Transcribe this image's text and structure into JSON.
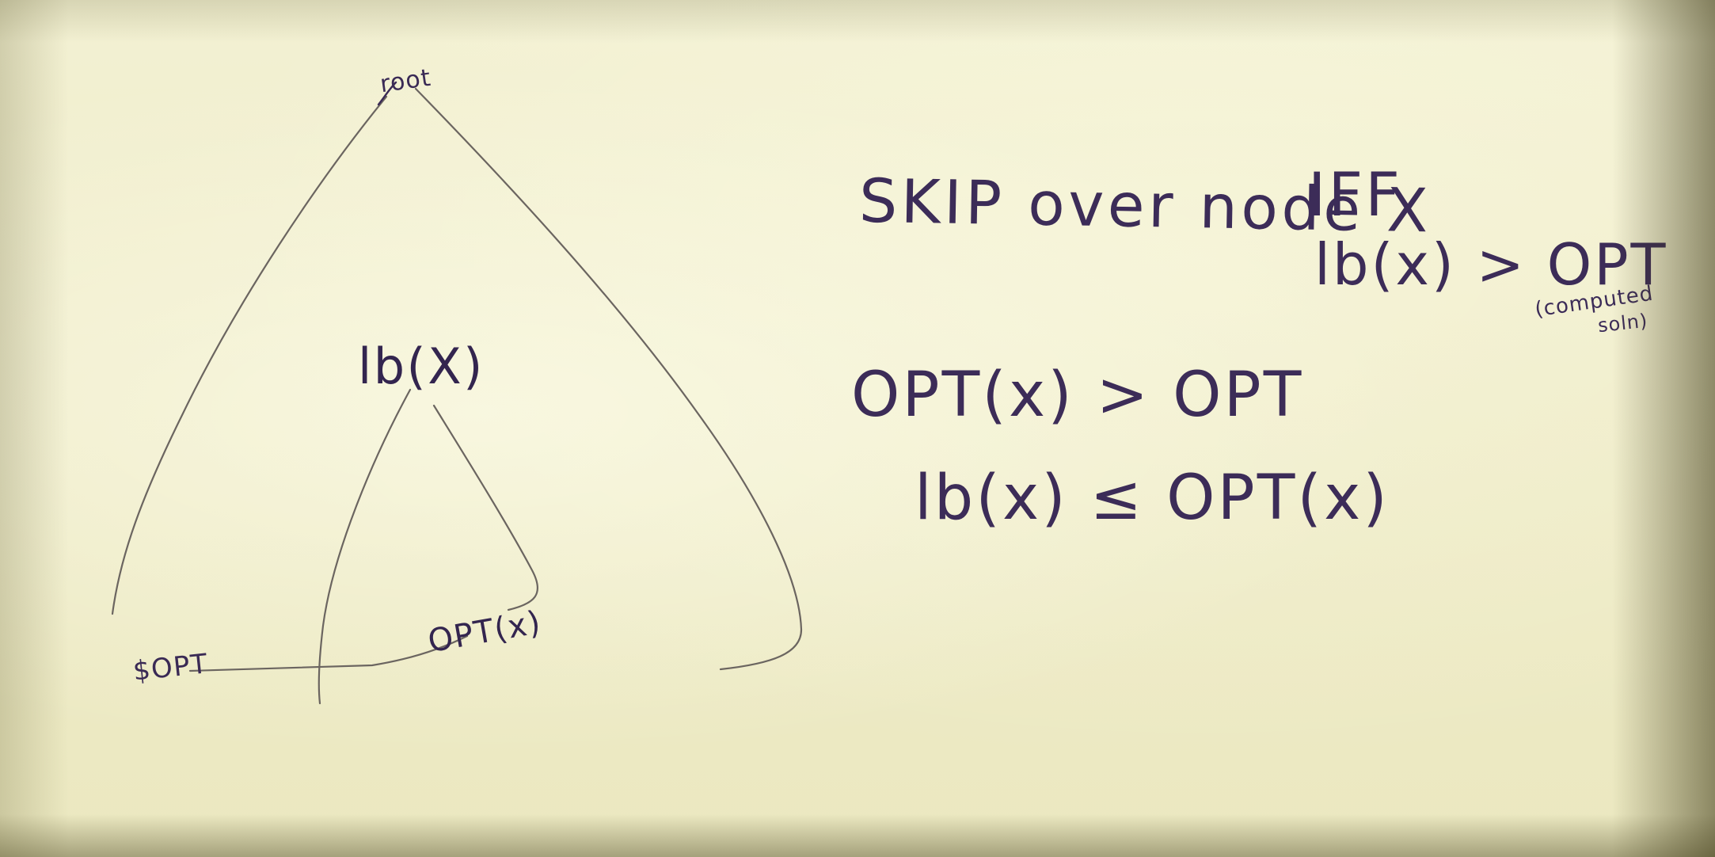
{
  "whiteboard": {
    "tree": {
      "root_label": "root",
      "subtree_label": "lb(X)",
      "subtree_leaf_label": "OPT(x)",
      "global_leaf_label": "$OPT"
    },
    "statements": {
      "skip_rule": "SKIP over node X",
      "iff": "IFF",
      "lb_gt_opt": "lb(x) > OPT",
      "computed_note": "(computed",
      "soln_note": "soln)",
      "optx_gt_opt": "OPT(x) > OPT",
      "lb_le_optx": "lb(x) ≤ OPT(x)"
    },
    "colors": {
      "board": "#efecc9",
      "marker": "#3c2c58",
      "pencil_line": "#6b6560"
    }
  }
}
